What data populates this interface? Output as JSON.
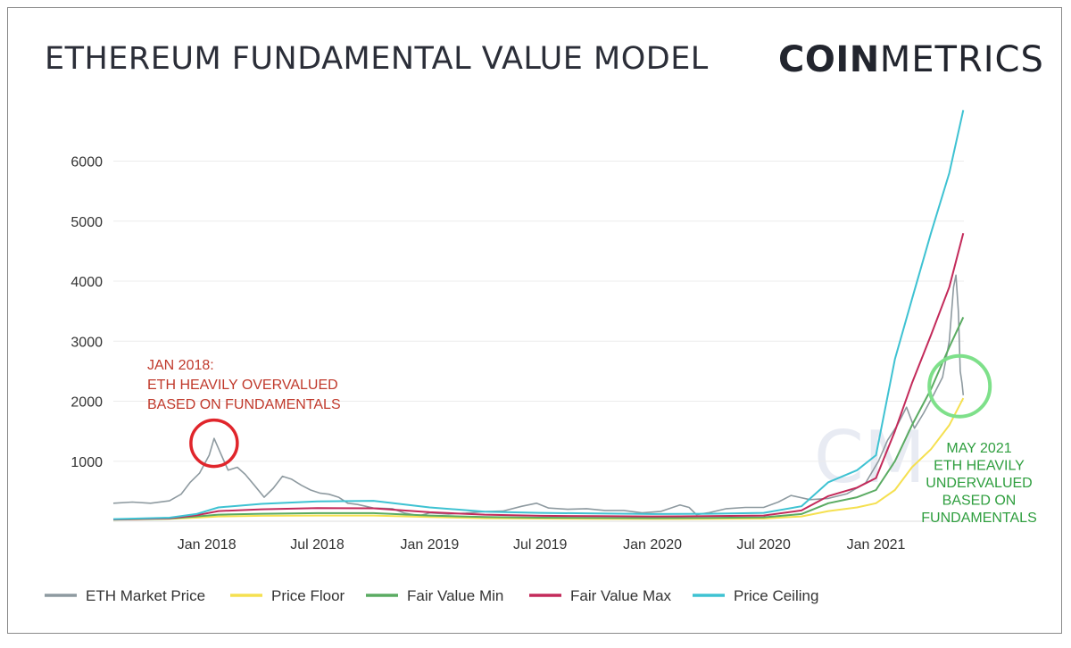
{
  "header": {
    "title": "ETHEREUM FUNDAMENTAL VALUE MODEL",
    "logo_bold": "COIN",
    "logo_light": "METRICS"
  },
  "chart_data": {
    "type": "line",
    "title": "ETHEREUM FUNDAMENTAL VALUE MODEL",
    "xlabel": "",
    "ylabel": "",
    "x_ticks": [
      "Jan 2018",
      "Jul 2018",
      "Jan 2019",
      "Jul 2019",
      "Jan 2020",
      "Jul 2020",
      "Jan 2021"
    ],
    "y_ticks": [
      1000,
      2000,
      3000,
      4000,
      5000,
      6000
    ],
    "xlim": [
      "2017-08-01",
      "2021-05-25"
    ],
    "ylim": [
      0,
      6900
    ],
    "grid": true,
    "legend_position": "bottom",
    "watermark": "CM",
    "series": [
      {
        "name": "ETH Market Price",
        "color": "#8e9aa0",
        "points": [
          [
            "2017-08-01",
            300
          ],
          [
            "2017-09-01",
            320
          ],
          [
            "2017-10-01",
            300
          ],
          [
            "2017-11-01",
            340
          ],
          [
            "2017-11-20",
            450
          ],
          [
            "2017-12-05",
            650
          ],
          [
            "2017-12-20",
            800
          ],
          [
            "2018-01-05",
            1100
          ],
          [
            "2018-01-13",
            1380
          ],
          [
            "2018-01-25",
            1100
          ],
          [
            "2018-02-05",
            850
          ],
          [
            "2018-02-20",
            900
          ],
          [
            "2018-03-05",
            780
          ],
          [
            "2018-03-20",
            600
          ],
          [
            "2018-04-05",
            400
          ],
          [
            "2018-04-20",
            550
          ],
          [
            "2018-05-05",
            750
          ],
          [
            "2018-05-20",
            700
          ],
          [
            "2018-06-05",
            600
          ],
          [
            "2018-06-20",
            520
          ],
          [
            "2018-07-05",
            470
          ],
          [
            "2018-07-20",
            450
          ],
          [
            "2018-08-05",
            400
          ],
          [
            "2018-08-20",
            300
          ],
          [
            "2018-09-05",
            280
          ],
          [
            "2018-10-01",
            220
          ],
          [
            "2018-11-01",
            210
          ],
          [
            "2018-11-20",
            140
          ],
          [
            "2018-12-15",
            90
          ],
          [
            "2019-01-01",
            140
          ],
          [
            "2019-02-01",
            120
          ],
          [
            "2019-03-01",
            135
          ],
          [
            "2019-04-01",
            160
          ],
          [
            "2019-05-01",
            170
          ],
          [
            "2019-06-01",
            250
          ],
          [
            "2019-06-25",
            300
          ],
          [
            "2019-07-15",
            220
          ],
          [
            "2019-08-15",
            200
          ],
          [
            "2019-09-15",
            210
          ],
          [
            "2019-10-15",
            180
          ],
          [
            "2019-11-15",
            180
          ],
          [
            "2019-12-15",
            140
          ],
          [
            "2020-01-15",
            165
          ],
          [
            "2020-02-15",
            270
          ],
          [
            "2020-03-01",
            230
          ],
          [
            "2020-03-13",
            110
          ],
          [
            "2020-04-01",
            140
          ],
          [
            "2020-05-01",
            210
          ],
          [
            "2020-06-01",
            230
          ],
          [
            "2020-07-01",
            230
          ],
          [
            "2020-07-25",
            320
          ],
          [
            "2020-08-15",
            430
          ],
          [
            "2020-09-15",
            360
          ],
          [
            "2020-10-15",
            380
          ],
          [
            "2020-11-15",
            460
          ],
          [
            "2020-12-15",
            640
          ],
          [
            "2021-01-05",
            1000
          ],
          [
            "2021-01-20",
            1350
          ],
          [
            "2021-02-05",
            1600
          ],
          [
            "2021-02-20",
            1900
          ],
          [
            "2021-03-05",
            1550
          ],
          [
            "2021-03-20",
            1800
          ],
          [
            "2021-04-05",
            2100
          ],
          [
            "2021-04-20",
            2400
          ],
          [
            "2021-05-01",
            3000
          ],
          [
            "2021-05-08",
            3900
          ],
          [
            "2021-05-12",
            4100
          ],
          [
            "2021-05-16",
            3500
          ],
          [
            "2021-05-19",
            2500
          ],
          [
            "2021-05-22",
            2300
          ],
          [
            "2021-05-24",
            2100
          ]
        ]
      },
      {
        "name": "Price Floor",
        "color": "#f5e050",
        "points": [
          [
            "2017-08-01",
            25
          ],
          [
            "2017-11-01",
            40
          ],
          [
            "2017-12-15",
            60
          ],
          [
            "2018-01-20",
            80
          ],
          [
            "2018-04-01",
            90
          ],
          [
            "2018-07-01",
            95
          ],
          [
            "2018-10-01",
            95
          ],
          [
            "2019-01-01",
            70
          ],
          [
            "2019-04-01",
            50
          ],
          [
            "2019-07-01",
            45
          ],
          [
            "2019-10-01",
            40
          ],
          [
            "2020-01-01",
            38
          ],
          [
            "2020-04-01",
            40
          ],
          [
            "2020-07-01",
            45
          ],
          [
            "2020-09-01",
            80
          ],
          [
            "2020-10-15",
            170
          ],
          [
            "2020-12-01",
            230
          ],
          [
            "2021-01-01",
            300
          ],
          [
            "2021-02-01",
            520
          ],
          [
            "2021-03-01",
            900
          ],
          [
            "2021-04-01",
            1200
          ],
          [
            "2021-05-01",
            1600
          ],
          [
            "2021-05-24",
            2050
          ]
        ]
      },
      {
        "name": "Fair Value Min",
        "color": "#5aab62",
        "points": [
          [
            "2017-08-01",
            28
          ],
          [
            "2017-11-01",
            45
          ],
          [
            "2017-12-15",
            80
          ],
          [
            "2018-01-20",
            110
          ],
          [
            "2018-04-01",
            125
          ],
          [
            "2018-07-01",
            135
          ],
          [
            "2018-10-01",
            135
          ],
          [
            "2019-01-01",
            95
          ],
          [
            "2019-04-01",
            70
          ],
          [
            "2019-07-01",
            60
          ],
          [
            "2019-10-01",
            55
          ],
          [
            "2020-01-01",
            52
          ],
          [
            "2020-04-01",
            55
          ],
          [
            "2020-07-01",
            65
          ],
          [
            "2020-09-01",
            120
          ],
          [
            "2020-10-15",
            300
          ],
          [
            "2020-12-01",
            400
          ],
          [
            "2021-01-01",
            520
          ],
          [
            "2021-02-01",
            1000
          ],
          [
            "2021-03-01",
            1600
          ],
          [
            "2021-04-01",
            2200
          ],
          [
            "2021-05-01",
            2900
          ],
          [
            "2021-05-24",
            3400
          ]
        ]
      },
      {
        "name": "Fair Value Max",
        "color": "#c32a5a",
        "points": [
          [
            "2017-08-01",
            30
          ],
          [
            "2017-11-01",
            50
          ],
          [
            "2017-12-15",
            100
          ],
          [
            "2018-01-20",
            170
          ],
          [
            "2018-04-01",
            200
          ],
          [
            "2018-07-01",
            220
          ],
          [
            "2018-10-01",
            215
          ],
          [
            "2019-01-01",
            150
          ],
          [
            "2019-04-01",
            110
          ],
          [
            "2019-07-01",
            90
          ],
          [
            "2019-10-01",
            85
          ],
          [
            "2020-01-01",
            80
          ],
          [
            "2020-04-01",
            85
          ],
          [
            "2020-07-01",
            95
          ],
          [
            "2020-09-01",
            180
          ],
          [
            "2020-10-15",
            420
          ],
          [
            "2020-12-01",
            560
          ],
          [
            "2021-01-01",
            720
          ],
          [
            "2021-02-01",
            1500
          ],
          [
            "2021-03-01",
            2300
          ],
          [
            "2021-04-01",
            3100
          ],
          [
            "2021-05-01",
            3900
          ],
          [
            "2021-05-24",
            4800
          ]
        ]
      },
      {
        "name": "Price Ceiling",
        "color": "#3ec2d2",
        "points": [
          [
            "2017-08-01",
            35
          ],
          [
            "2017-11-01",
            60
          ],
          [
            "2017-12-15",
            120
          ],
          [
            "2018-01-20",
            230
          ],
          [
            "2018-04-01",
            290
          ],
          [
            "2018-07-01",
            330
          ],
          [
            "2018-10-01",
            340
          ],
          [
            "2019-01-01",
            230
          ],
          [
            "2019-04-01",
            160
          ],
          [
            "2019-07-01",
            140
          ],
          [
            "2019-10-01",
            130
          ],
          [
            "2020-01-01",
            120
          ],
          [
            "2020-04-01",
            125
          ],
          [
            "2020-07-01",
            140
          ],
          [
            "2020-09-01",
            250
          ],
          [
            "2020-10-15",
            650
          ],
          [
            "2020-12-01",
            850
          ],
          [
            "2021-01-01",
            1100
          ],
          [
            "2021-02-01",
            2700
          ],
          [
            "2021-03-01",
            3700
          ],
          [
            "2021-04-01",
            4800
          ],
          [
            "2021-05-01",
            5800
          ],
          [
            "2021-05-24",
            6850
          ]
        ]
      }
    ],
    "annotations": [
      {
        "lines": [
          "JAN 2018:",
          "ETH HEAVILY OVERVALUED",
          "BASED ON FUNDAMENTALS"
        ],
        "color": "#c0392b",
        "target": [
          "2018-01-13",
          1300
        ]
      },
      {
        "lines": [
          "MAY 2021",
          "ETH HEAVILY",
          "UNDERVALUED",
          "BASED ON",
          "FUNDAMENTALS"
        ],
        "color": "#2e9e3e",
        "target": [
          "2021-05-18",
          2250
        ]
      }
    ]
  }
}
